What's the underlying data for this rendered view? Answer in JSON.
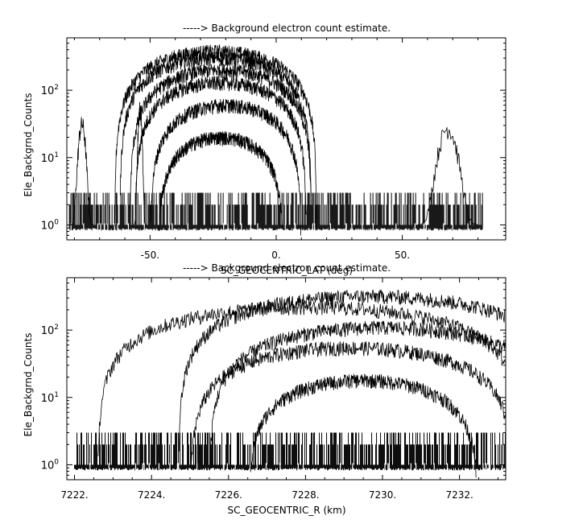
{
  "chart_data": [
    {
      "type": "line",
      "title": "-----> Background electron count estimate.",
      "xlabel": "SC_GEOCENTRIC_LAT (deg)",
      "ylabel": "Ele_Backgrnd_Counts",
      "xlim": [
        -83,
        91
      ],
      "ylim": [
        0.6,
        600
      ],
      "yscale": "log",
      "x_ticks": [
        {
          "value": -50,
          "label": "-50."
        },
        {
          "value": 0,
          "label": "0."
        },
        {
          "value": 50,
          "label": "50."
        }
      ],
      "x_minor_ticks": [
        -80,
        -70,
        -60,
        -40,
        -30,
        -20,
        -10,
        10,
        20,
        30,
        40,
        60,
        70,
        80
      ],
      "y_ticks": [
        {
          "value": 1,
          "base": "10",
          "exp": "0"
        },
        {
          "value": 10,
          "base": "10",
          "exp": "1"
        },
        {
          "value": 100,
          "base": "10",
          "exp": "2"
        }
      ],
      "noise_floor": {
        "x_range": [
          -82,
          82
        ],
        "level_max": 3
      },
      "spikes": [
        {
          "x": -77,
          "peak": 35,
          "width": 1.5
        },
        {
          "x": -54,
          "peak": 60,
          "width": 0.8
        },
        {
          "x": 68,
          "peak": 30,
          "width": 4
        }
      ],
      "series": [
        {
          "center": -24,
          "peak": 380,
          "halfwidth": 40
        },
        {
          "center": -24,
          "peak": 300,
          "halfwidth": 38
        },
        {
          "center": -22,
          "peak": 200,
          "halfwidth": 36
        },
        {
          "center": -22,
          "peak": 130,
          "halfwidth": 34
        },
        {
          "center": -20,
          "peak": 60,
          "halfwidth": 30
        },
        {
          "center": -22,
          "peak": 20,
          "halfwidth": 25
        }
      ]
    },
    {
      "type": "line",
      "title": "-----> Background electron count estimate.",
      "xlabel": "SC_GEOCENTRIC_R (km)",
      "ylabel": "Ele_Backgrnd_Counts",
      "xlim": [
        7221.8,
        7233.2
      ],
      "ylim": [
        0.6,
        600
      ],
      "yscale": "log",
      "x_ticks": [
        {
          "value": 7222,
          "label": "7222."
        },
        {
          "value": 7224,
          "label": "7224."
        },
        {
          "value": 7226,
          "label": "7226."
        },
        {
          "value": 7228,
          "label": "7228."
        },
        {
          "value": 7230,
          "label": "7230."
        },
        {
          "value": 7232,
          "label": "7232."
        }
      ],
      "x_minor_ticks": [
        7222.5,
        7223,
        7223.5,
        7224.5,
        7225,
        7225.5,
        7226.5,
        7227,
        7227.5,
        7228.5,
        7229,
        7229.5,
        7230.5,
        7231,
        7231.5,
        7232.5,
        7233
      ],
      "y_ticks": [
        {
          "value": 1,
          "base": "10",
          "exp": "0"
        },
        {
          "value": 10,
          "base": "10",
          "exp": "1"
        },
        {
          "value": 100,
          "base": "10",
          "exp": "2"
        }
      ],
      "noise_floor": {
        "x_range": [
          7222,
          7233.2
        ],
        "level_max": 3
      },
      "series": [
        {
          "center": 7229.7,
          "peak": 320,
          "halfwidth": 5.0
        },
        {
          "center": 7228.1,
          "peak": 220,
          "halfwidth": 5.5
        },
        {
          "center": 7230.0,
          "peak": 110,
          "halfwidth": 4.5
        },
        {
          "center": 7229.2,
          "peak": 55,
          "halfwidth": 4.2
        },
        {
          "center": 7229.5,
          "peak": 18,
          "halfwidth": 3.0
        }
      ]
    }
  ]
}
